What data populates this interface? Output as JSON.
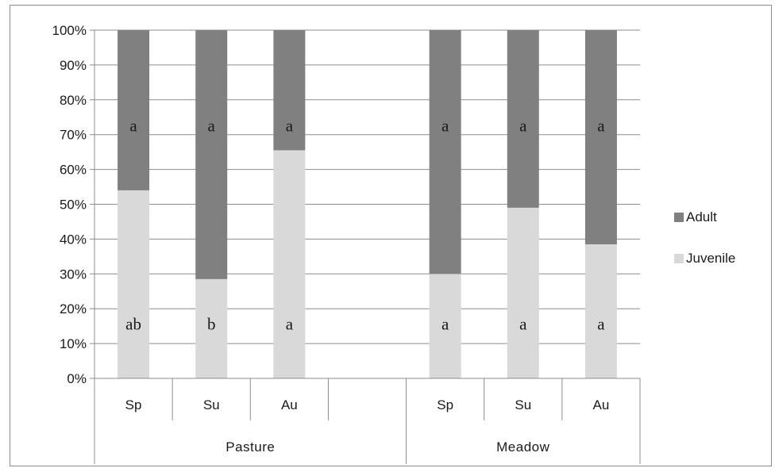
{
  "chart_data": {
    "type": "bar",
    "stacked": true,
    "percent": true,
    "groups": [
      {
        "label": "Pasture",
        "categories": [
          "Sp",
          "Su",
          "Au",
          ""
        ]
      },
      {
        "label": "Meadow",
        "categories": [
          "Sp",
          "Su",
          "Au"
        ]
      }
    ],
    "categories": [
      "Sp",
      "Su",
      "Au",
      "",
      "Sp",
      "Su",
      "Au"
    ],
    "series": [
      {
        "name": "Juvenile",
        "color": "#d9d9d9",
        "values": [
          54,
          28.5,
          65.5,
          null,
          30,
          49,
          38.5
        ],
        "annotations": [
          "ab",
          "b",
          "a",
          "",
          "a",
          "a",
          "a"
        ]
      },
      {
        "name": "Adult",
        "color": "#808080",
        "values": [
          46,
          71.5,
          34.5,
          null,
          70,
          51,
          61.5
        ],
        "annotations": [
          "a",
          "a",
          "a",
          "",
          "a",
          "a",
          "a"
        ]
      }
    ],
    "y_ticks": [
      "0%",
      "10%",
      "20%",
      "30%",
      "40%",
      "50%",
      "60%",
      "70%",
      "80%",
      "90%",
      "100%"
    ],
    "ylim": [
      0,
      100
    ],
    "grid": true,
    "legend": {
      "position": "right",
      "entries": [
        "Adult",
        "Juvenile"
      ]
    },
    "title": "",
    "xlabel": "",
    "ylabel": ""
  }
}
